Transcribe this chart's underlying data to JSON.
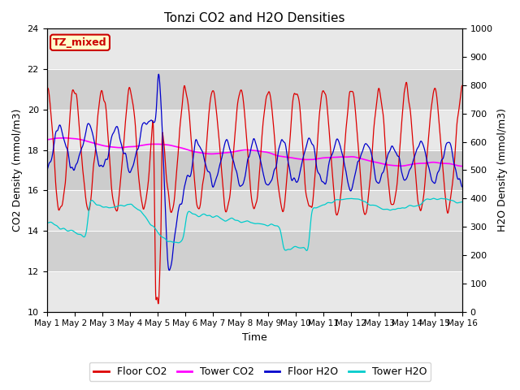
{
  "title": "Tonzi CO2 and H2O Densities",
  "xlabel": "Time",
  "ylabel_left": "CO2 Density (mmol/m3)",
  "ylabel_right": "H2O Density (mmol/m3)",
  "ylim_left": [
    10,
    24
  ],
  "ylim_right": [
    0,
    1000
  ],
  "xtick_labels": [
    "May 1",
    "May 2",
    "May 3",
    "May 4",
    "May 5",
    "May 6",
    "May 7",
    "May 8",
    "May 9",
    "May 10",
    "May 11",
    "May 12",
    "May 13",
    "May 14",
    "May 15",
    "May 16"
  ],
  "shaded_band_light": [
    12,
    14
  ],
  "shaded_band_mid": [
    14,
    18
  ],
  "shaded_band_upper": [
    18,
    22
  ],
  "label_text": "TZ_mixed",
  "label_bbox_facecolor": "#ffffcc",
  "label_bbox_edgecolor": "#cc0000",
  "floor_co2_color": "#dd0000",
  "tower_co2_color": "#ff00ff",
  "floor_h2o_color": "#0000cc",
  "tower_h2o_color": "#00cccc",
  "background_color": "#ffffff",
  "n_points": 1500,
  "days": 15
}
